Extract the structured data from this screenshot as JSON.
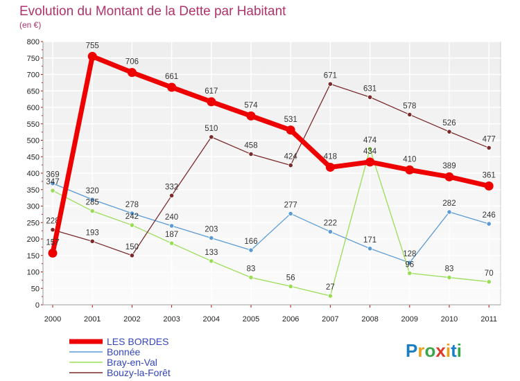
{
  "chart_data": {
    "type": "line",
    "title": "Evolution du Montant de la Dette par Habitant",
    "subtitle": "(en €)",
    "x": [
      "2000",
      "2001",
      "2002",
      "2003",
      "2004",
      "2005",
      "2006",
      "2007",
      "2008",
      "2009",
      "2010",
      "2011"
    ],
    "ylim": [
      0,
      800
    ],
    "yticks": [
      0,
      50,
      100,
      150,
      200,
      250,
      300,
      350,
      400,
      450,
      500,
      550,
      600,
      650,
      700,
      750,
      800
    ],
    "grid": true,
    "legend_position": "bottom-left",
    "series": [
      {
        "name": "LES BORDES",
        "color": "#ee0000",
        "values": [
          157,
          755,
          706,
          661,
          617,
          574,
          531,
          418,
          434,
          410,
          389,
          361
        ]
      },
      {
        "name": "Bonnée",
        "color": "#5b9bd5",
        "values": [
          369,
          320,
          278,
          240,
          203,
          166,
          277,
          222,
          171,
          128,
          282,
          246
        ]
      },
      {
        "name": "Bray-en-Val",
        "color": "#99dd55",
        "values": [
          347,
          285,
          242,
          187,
          133,
          83,
          56,
          27,
          474,
          96,
          83,
          70
        ]
      },
      {
        "name": "Bouzy-la-Forêt",
        "color": "#7a2a2a",
        "values": [
          228,
          193,
          150,
          332,
          510,
          458,
          424,
          671,
          631,
          578,
          526,
          477
        ]
      }
    ]
  },
  "logo": {
    "text": "Proxiti"
  }
}
